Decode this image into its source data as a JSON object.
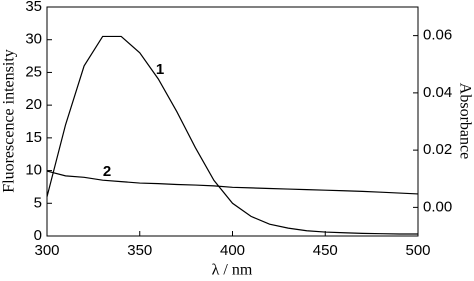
{
  "chart_data": {
    "type": "line",
    "y_label": "Fluorescence intensity",
    "y2_label": "Absorbance",
    "x_label": "λ / nm",
    "annotations": [
      "1",
      "2"
    ],
    "x": [
      300,
      310,
      320,
      330,
      340,
      350,
      360,
      370,
      380,
      390,
      400,
      410,
      420,
      430,
      440,
      450,
      460,
      470,
      480,
      490,
      500
    ],
    "series": [
      {
        "name": "1",
        "color": "#000000",
        "values": [
          6,
          17,
          26,
          30.5,
          30.5,
          28,
          24,
          19,
          13.5,
          8.5,
          5,
          3,
          1.8,
          1.2,
          0.8,
          0.6,
          0.5,
          0.4,
          0.35,
          0.3,
          0.3
        ]
      },
      {
        "name": "2",
        "color": "#000000",
        "axis": "y2",
        "values": [
          0.0127,
          0.011,
          0.0105,
          0.0095,
          0.009,
          0.0085,
          0.0083,
          0.008,
          0.0078,
          0.0075,
          0.007,
          0.0068,
          0.0066,
          0.0064,
          0.0062,
          0.006,
          0.0058,
          0.0056,
          0.0053,
          0.005,
          0.0047
        ]
      }
    ],
    "xlim": [
      300,
      500
    ],
    "xticks": [
      300,
      350,
      400,
      450,
      500
    ],
    "ylim": [
      0,
      35
    ],
    "yticks": [
      0,
      5,
      10,
      15,
      20,
      25,
      30,
      35
    ],
    "y2lim": [
      -0.01,
      0.07
    ],
    "y2ticks": [
      {
        "value": 0,
        "label": "0.00"
      },
      {
        "value": 0.02,
        "label": "0.02"
      },
      {
        "value": 0.04,
        "label": "0.04"
      },
      {
        "value": 0.06,
        "label": "0.06"
      }
    ]
  }
}
